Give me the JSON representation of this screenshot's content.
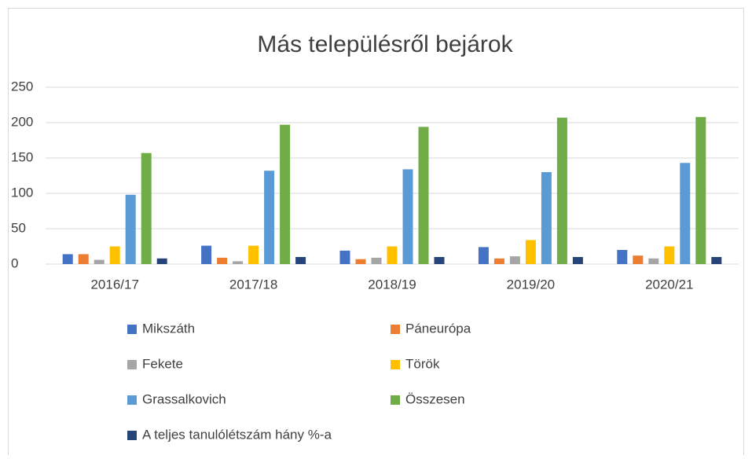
{
  "chart_data": {
    "type": "bar",
    "title": "Más településről bejárok",
    "categories": [
      "2016/17",
      "2017/18",
      "2018/19",
      "2019/20",
      "2020/21"
    ],
    "series": [
      {
        "name": "Mikszáth",
        "color": "#4472c4",
        "values": [
          14,
          26,
          19,
          24,
          20
        ]
      },
      {
        "name": "Páneurópa",
        "color": "#ed7d31",
        "values": [
          14,
          9,
          7,
          8,
          12
        ]
      },
      {
        "name": "Fekete",
        "color": "#a5a5a5",
        "values": [
          6,
          4,
          9,
          11,
          8
        ]
      },
      {
        "name": "Török",
        "color": "#ffc000",
        "values": [
          25,
          26,
          25,
          34,
          25
        ]
      },
      {
        "name": "Grassalkovich",
        "color": "#5b9bd5",
        "values": [
          98,
          132,
          134,
          130,
          143
        ]
      },
      {
        "name": "Összesen",
        "color": "#70ad47",
        "values": [
          157,
          197,
          194,
          207,
          208
        ]
      },
      {
        "name": "A teljes tanulólétszám hány %-a",
        "color": "#264478",
        "values": [
          8,
          10,
          10,
          10,
          10
        ]
      }
    ],
    "ylim": [
      0,
      250
    ],
    "yticks": [
      0,
      50,
      100,
      150,
      200,
      250
    ],
    "grid": true,
    "legend": "bottom"
  }
}
